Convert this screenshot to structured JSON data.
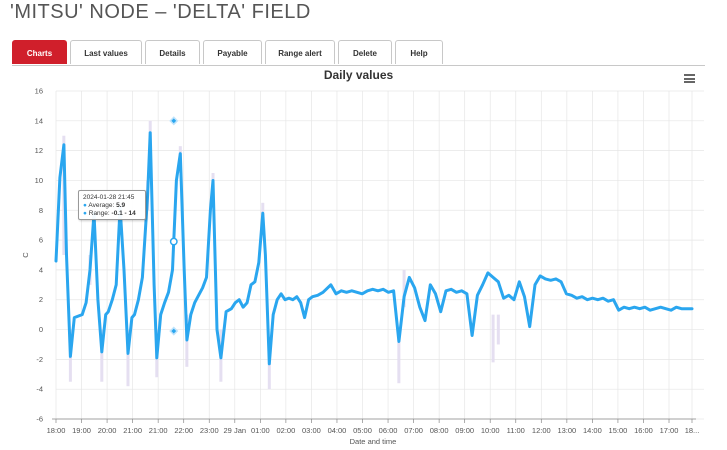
{
  "page": {
    "title": "'MITSU' NODE – 'DELTA' FIELD"
  },
  "tabs": [
    {
      "label": "Charts",
      "active": true
    },
    {
      "label": "Last values",
      "active": false
    },
    {
      "label": "Details",
      "active": false
    },
    {
      "label": "Payable",
      "active": false
    },
    {
      "label": "Range alert",
      "active": false
    },
    {
      "label": "Delete",
      "active": false
    },
    {
      "label": "Help",
      "active": false
    }
  ],
  "menu": {
    "icon": "hamburger-menu-icon"
  },
  "colors": {
    "line": "#2aa6ef",
    "range": "#e2dcf0",
    "active_tab": "#d01f2b",
    "grid": "#e6e6e6"
  },
  "tooltip": {
    "timestamp": "2024-01-28 21:45",
    "average_label": "Average:",
    "average_value": "5.9",
    "range_label": "Range:",
    "range_value": "-0.1 - 14"
  },
  "chart_data": {
    "type": "line",
    "title": "Daily values",
    "xlabel": "Date and time",
    "ylabel": "C",
    "ylim": [
      -6,
      16
    ],
    "yticks": [
      -6,
      -4,
      -2,
      0,
      2,
      4,
      6,
      8,
      10,
      12,
      14,
      16
    ],
    "x_unit": "hours since 18:00 on 28 Jan",
    "xlim": [
      0,
      24.3
    ],
    "xtick_labels": [
      "18:00",
      "19:00",
      "20:00",
      "21:00",
      "21:00",
      "22:00",
      "23:00",
      "29 Jan",
      "01:00",
      "02:00",
      "03:00",
      "04:00",
      "05:00",
      "06:00",
      "07:00",
      "08:00",
      "09:00",
      "10:00",
      "11:00",
      "12:00",
      "13:00",
      "14:00",
      "15:00",
      "16:00",
      "17:00",
      "18..."
    ],
    "xtick_positions": [
      0,
      1,
      2,
      3,
      4,
      5,
      6,
      7,
      8,
      9,
      10,
      11,
      12,
      13,
      14,
      15,
      16,
      17,
      18,
      19,
      20,
      21,
      22,
      23,
      24,
      24.9
    ],
    "grid": true,
    "legend": "none",
    "series": [
      {
        "name": "Average",
        "x": [
          0.0,
          0.15,
          0.3,
          0.4,
          0.55,
          0.7,
          0.85,
          1.0,
          1.15,
          1.3,
          1.45,
          1.6,
          1.75,
          1.9,
          2.0,
          2.15,
          2.3,
          2.45,
          2.6,
          2.75,
          2.9,
          3.0,
          3.15,
          3.3,
          3.5,
          3.6,
          3.75,
          3.85,
          4.0,
          4.15,
          4.3,
          4.45,
          4.6,
          4.75,
          4.9,
          5.0,
          5.15,
          5.3,
          5.45,
          5.6,
          5.75,
          5.9,
          6.0,
          6.15,
          6.3,
          6.5,
          6.7,
          6.85,
          7.0,
          7.15,
          7.3,
          7.45,
          7.6,
          7.75,
          7.9,
          8.0,
          8.15,
          8.3,
          8.45,
          8.6,
          8.75,
          8.9,
          9.05,
          9.2,
          9.35,
          9.5,
          9.65,
          9.8,
          10.0,
          10.2,
          10.5,
          10.7,
          10.9,
          11.1,
          11.3,
          11.5,
          11.7,
          11.9,
          12.1,
          12.3,
          12.5,
          12.7,
          12.9,
          13.1,
          13.3,
          13.5,
          13.7,
          13.9,
          14.1,
          14.3,
          14.5,
          14.7,
          14.9,
          15.1,
          15.3,
          15.5,
          15.7,
          15.9,
          16.1,
          16.3,
          16.5,
          16.7,
          16.9,
          17.1,
          17.3,
          17.5,
          17.7,
          17.9,
          18.1,
          18.3,
          18.5,
          18.7,
          18.9,
          19.1,
          19.3,
          19.5,
          19.7,
          19.9,
          20.1,
          20.3,
          20.5,
          20.7,
          20.9,
          21.1,
          21.3,
          21.5,
          21.7,
          21.9,
          22.1,
          22.3,
          22.5,
          22.7,
          22.9,
          23.1,
          23.3,
          23.5,
          23.7,
          23.9,
          24.1,
          24.3
        ],
        "y": [
          4.6,
          10.2,
          12.4,
          5.0,
          -1.8,
          0.8,
          0.9,
          1.0,
          1.8,
          4.0,
          7.8,
          2.0,
          -1.5,
          1.0,
          1.2,
          2.0,
          3.0,
          8.2,
          4.0,
          -1.6,
          0.8,
          1.0,
          2.0,
          3.5,
          9.0,
          13.2,
          3.0,
          -1.9,
          1.0,
          1.8,
          2.5,
          4.0,
          10.0,
          11.8,
          4.0,
          -0.7,
          1.0,
          1.8,
          2.3,
          2.8,
          3.5,
          8.0,
          10.0,
          0.0,
          -1.9,
          1.2,
          1.4,
          1.8,
          2.0,
          1.5,
          1.8,
          3.0,
          3.2,
          4.5,
          7.8,
          5.0,
          -2.3,
          1.0,
          2.0,
          2.4,
          2.0,
          2.1,
          2.0,
          2.2,
          1.8,
          0.8,
          2.0,
          2.2,
          2.3,
          2.5,
          3.0,
          2.4,
          2.6,
          2.5,
          2.6,
          2.5,
          2.4,
          2.6,
          2.7,
          2.6,
          2.7,
          2.5,
          2.6,
          -0.8,
          2.2,
          3.5,
          2.8,
          1.5,
          0.6,
          3.0,
          2.4,
          1.2,
          2.6,
          2.7,
          2.5,
          2.6,
          2.4,
          -0.4,
          2.3,
          3.0,
          3.8,
          3.5,
          3.2,
          2.1,
          2.3,
          2.0,
          3.2,
          2.2,
          0.2,
          3.0,
          3.6,
          3.4,
          3.3,
          3.4,
          3.2,
          2.4,
          2.3,
          2.1,
          2.2,
          2.0,
          2.1,
          2.0,
          2.1,
          1.9,
          2.0,
          1.3,
          1.5,
          1.4,
          1.5,
          1.4,
          1.5,
          1.3,
          1.4,
          1.5,
          1.4,
          1.3,
          1.5,
          1.4,
          1.4,
          1.4
        ]
      }
    ],
    "range_series": {
      "name": "Range",
      "x": [
        0.3,
        0.55,
        1.3,
        1.45,
        1.75,
        2.45,
        2.75,
        3.5,
        3.6,
        3.85,
        4.75,
        5.0,
        6.0,
        6.3,
        7.9,
        8.15,
        13.1,
        13.3,
        16.7,
        16.9
      ],
      "low": [
        5.0,
        -3.5,
        3.0,
        6.5,
        -3.5,
        7.0,
        -3.8,
        8.0,
        12.0,
        -3.2,
        10.5,
        -2.5,
        9.0,
        -3.5,
        6.5,
        -4.0,
        -3.6,
        1.5,
        -2.2,
        -1.0
      ],
      "high": [
        13.0,
        0.0,
        5.0,
        8.8,
        0.0,
        9.0,
        0.0,
        10.0,
        14.0,
        0.0,
        12.3,
        1.0,
        10.5,
        0.0,
        8.5,
        -1.0,
        0.0,
        4.0,
        1.0,
        1.0
      ]
    },
    "highlight": {
      "x": 4.5,
      "average": 5.9,
      "range_low": -0.1,
      "range_high": 14
    }
  }
}
